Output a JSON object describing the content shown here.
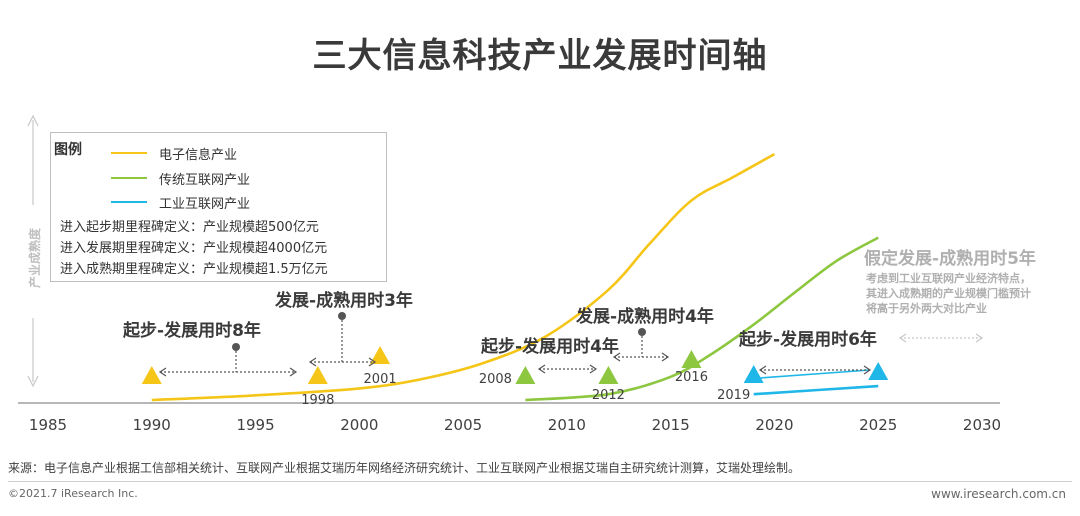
{
  "title": "三大信息科技产业发展时间轴",
  "chart_data": {
    "type": "line",
    "ylabel": "产业成熟度",
    "xlim": [
      1985,
      2030
    ],
    "x_ticks": [
      1985,
      1990,
      1995,
      2000,
      2005,
      2010,
      2015,
      2020,
      2025,
      2030
    ],
    "series": [
      {
        "name": "电子信息产业",
        "color": "#F5C518",
        "points": [
          [
            1990,
            0.0
          ],
          [
            1995,
            0.04
          ],
          [
            2000,
            0.1
          ],
          [
            2003,
            0.18
          ],
          [
            2006,
            0.32
          ],
          [
            2009,
            0.55
          ],
          [
            2012,
            0.95
          ],
          [
            2014,
            1.35
          ],
          [
            2016,
            1.72
          ],
          [
            2018,
            1.92
          ],
          [
            2020,
            2.12
          ]
        ]
      },
      {
        "name": "传统互联网产业",
        "color": "#8DC63F",
        "points": [
          [
            2008,
            0.0
          ],
          [
            2012,
            0.05
          ],
          [
            2015,
            0.2
          ],
          [
            2017,
            0.4
          ],
          [
            2019,
            0.65
          ],
          [
            2021,
            0.93
          ],
          [
            2023,
            1.2
          ],
          [
            2025,
            1.4
          ]
        ]
      },
      {
        "name": "工业互联网产业",
        "color": "#1FB6E8",
        "points": [
          [
            2019,
            0.05
          ],
          [
            2025,
            0.12
          ]
        ]
      }
    ],
    "legend": {
      "title": "图例",
      "definitions": [
        "进入起步期里程碑定义：产业规模超500亿元",
        "进入发展期里程碑定义：产业规模超4000亿元",
        "进入成熟期里程碑定义：产业规模超1.5万亿元"
      ]
    },
    "milestones": [
      {
        "series": 0,
        "year": 1990,
        "label": ""
      },
      {
        "series": 0,
        "year": 1998,
        "label": "1998"
      },
      {
        "series": 0,
        "year": 2001,
        "label": "2001"
      },
      {
        "series": 1,
        "year": 2008,
        "label": "2008"
      },
      {
        "series": 1,
        "year": 2012,
        "label": "2012"
      },
      {
        "series": 1,
        "year": 2016,
        "label": "2016"
      },
      {
        "series": 2,
        "year": 2019,
        "label": "2019"
      },
      {
        "series": 2,
        "year": 2025,
        "label": ""
      }
    ],
    "annotations": [
      {
        "text": "起步-发展用时8年"
      },
      {
        "text": "发展-成熟用时3年"
      },
      {
        "text": "起步-发展用时4年"
      },
      {
        "text": "发展-成熟用时4年"
      },
      {
        "text": "起步-发展用时6年"
      },
      {
        "text": "假定发展-成熟用时5年"
      }
    ],
    "note": [
      "考虑到工业互联网产业经济特点，",
      "其进入成熟期的产业规模门槛预计",
      "将高于另外两大对比产业"
    ]
  },
  "footer": {
    "source": "来源：电子信息产业根据工信部相关统计、互联网产业根据艾瑞历年网络经济研究统计、工业互联网产业根据艾瑞自主研究统计测算，艾瑞处理绘制。",
    "copyright": "©2021.7 iResearch Inc.",
    "website": "www.iresearch.com.cn"
  }
}
